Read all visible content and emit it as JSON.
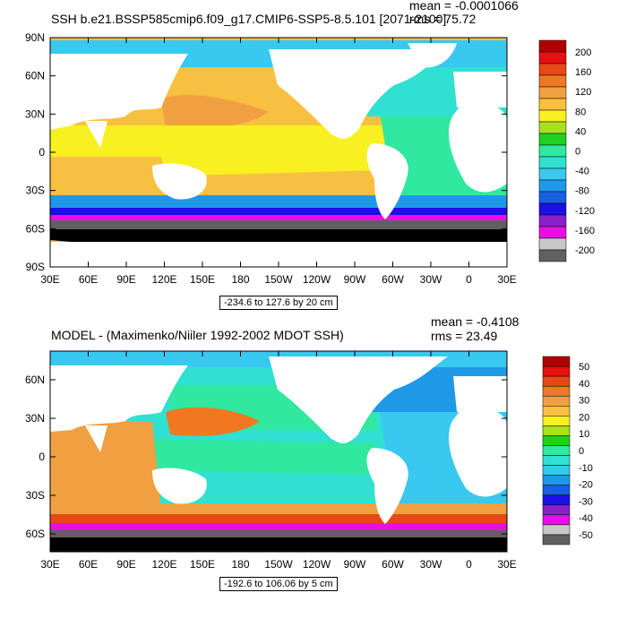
{
  "palette": [
    "#606060",
    "#c8c8c8",
    "#e810e0",
    "#8a20c8",
    "#1a10e8",
    "#1860e0",
    "#2098e8",
    "#38c8f0",
    "#30e0d0",
    "#30e8a0",
    "#20d020",
    "#a8e020",
    "#f8f020",
    "#f8c040",
    "#f0a040",
    "#f07820",
    "#e84818",
    "#e81010",
    "#b00000"
  ],
  "land_color": "#ffffff",
  "ice_color": "#000000",
  "panels": [
    {
      "id": "top",
      "title": "SSH b.e21.BSSP585cmip6.f09_g17.CMIP6-SSP5-8.5.101 [2071-2100]",
      "mean_text": "mean = -0.0001066",
      "rms_text": "rms = 75.72",
      "range_text": "-234.6 to 127.6 by 20 cm",
      "lat_labels": [
        "90N",
        "60N",
        "30N",
        "0",
        "30S",
        "60S",
        "90S"
      ],
      "lon_labels": [
        "30E",
        "60E",
        "90E",
        "120E",
        "150E",
        "180",
        "150W",
        "120W",
        "90W",
        "60W",
        "30W",
        "0",
        "30E"
      ],
      "colorbar_labels": [
        "200",
        "160",
        "120",
        "80",
        "40",
        "0",
        "-40",
        "-80",
        "-120",
        "-160",
        "-200"
      ],
      "regions": [
        {
          "name": "arctic",
          "color": "#38c8f0"
        },
        {
          "name": "north-atlantic",
          "color": "#30e0d0"
        },
        {
          "name": "north-pacific",
          "color": "#f8c040"
        },
        {
          "name": "kuroshio-high",
          "color": "#f0a040"
        },
        {
          "name": "tropical-pacific",
          "color": "#f8f020"
        },
        {
          "name": "indian-ocean",
          "color": "#f8c040"
        },
        {
          "name": "south-pacific",
          "color": "#f8c040"
        },
        {
          "name": "atlantic-tropics",
          "color": "#30e8a0"
        },
        {
          "name": "southern-ocean-1",
          "color": "#2098e8"
        },
        {
          "name": "southern-ocean-2",
          "color": "#1a10e8"
        },
        {
          "name": "southern-ocean-3",
          "color": "#e810e0"
        },
        {
          "name": "southern-ocean-4",
          "color": "#606060"
        }
      ]
    },
    {
      "id": "bottom",
      "title": "MODEL - (Maximenko/Niiler 1992-2002 MDOT SSH)",
      "mean_text": "mean = -0.4108",
      "rms_text": "rms = 23.49",
      "range_text": "-192.6 to 106.06 by 5 cm",
      "lat_labels": [
        "60N",
        "30N",
        "0",
        "30S",
        "60S"
      ],
      "lon_labels": [
        "30E",
        "60E",
        "90E",
        "120E",
        "150E",
        "180",
        "150W",
        "120W",
        "90W",
        "60W",
        "30W",
        "0",
        "30E"
      ],
      "colorbar_labels": [
        "50",
        "40",
        "30",
        "20",
        "10",
        "0",
        "-10",
        "-20",
        "-30",
        "-40",
        "-50"
      ],
      "regions": [
        {
          "name": "arctic",
          "color": "#38c8f0"
        },
        {
          "name": "north-atlantic",
          "color": "#2098e8"
        },
        {
          "name": "north-pacific",
          "color": "#30e8a0"
        },
        {
          "name": "kuroshio-high",
          "color": "#f07820"
        },
        {
          "name": "tropical-pacific",
          "color": "#30e8a0"
        },
        {
          "name": "indian-ocean",
          "color": "#f0a040"
        },
        {
          "name": "south-pacific",
          "color": "#30e0d0"
        },
        {
          "name": "atlantic-tropics",
          "color": "#38c8f0"
        },
        {
          "name": "southern-ocean-1",
          "color": "#f0a040"
        },
        {
          "name": "southern-ocean-2",
          "color": "#e84818"
        },
        {
          "name": "southern-ocean-3",
          "color": "#e810e0"
        },
        {
          "name": "southern-ocean-4",
          "color": "#606060"
        }
      ]
    }
  ]
}
